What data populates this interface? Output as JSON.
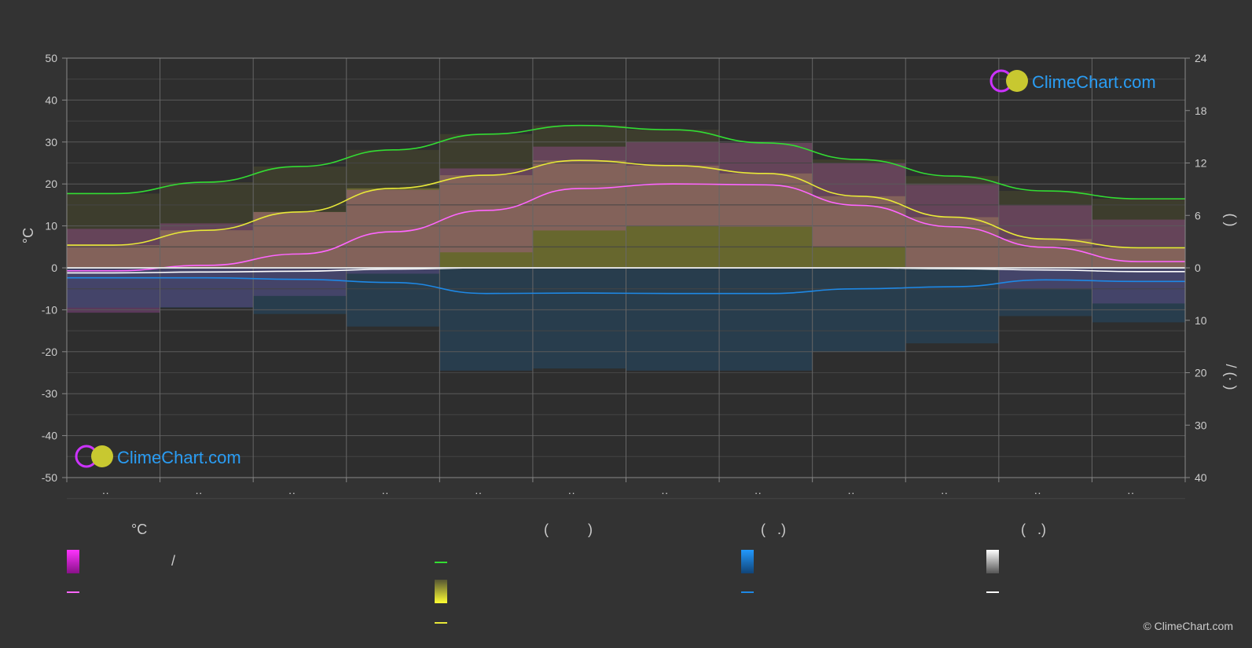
{
  "colors": {
    "daylight": "#33dd33",
    "sunshine": "#e8e838",
    "temp_mean": "#ff66ff",
    "min_temp": "#ffffff",
    "rain": "#1e88e5",
    "background": "#333333"
  },
  "left_axis_title": "°C",
  "right_axis_top_title": "(  )",
  "right_axis_bottom_title": "/   (· )",
  "month_labels": [
    "··",
    "··",
    "··",
    "··",
    "··",
    "··",
    "··",
    "··",
    "··",
    "··",
    "··",
    "··"
  ],
  "logo": {
    "text": "ClimeChart.com",
    "top_icon": "climechart-logo-icon",
    "bottom_icon": "climechart-logo-icon"
  },
  "legend": {
    "temp_head": "°C",
    "sun_head": "(          )",
    "rain_head": "(   .)",
    "snow_head": "(   .)",
    "temp_range_label": "/",
    "daylight_label": "",
    "sunshine_label": "",
    "rain_label": "",
    "snow_label": ""
  },
  "copyright": "© ClimeChart.com",
  "chart_data": {
    "type": "area",
    "title": "",
    "months": 12,
    "left_axis": {
      "label": "°C",
      "ylim": [
        -50,
        50
      ],
      "ticks": [
        50,
        40,
        30,
        20,
        10,
        0,
        -10,
        -20,
        -30,
        -40,
        -50
      ]
    },
    "right_axis_top": {
      "ylim": [
        0,
        24
      ],
      "ticks": [
        24,
        18,
        12,
        6,
        0
      ]
    },
    "right_axis_bottom": {
      "ylim": [
        0,
        40
      ],
      "ticks": [
        0,
        10,
        20,
        30,
        40
      ]
    },
    "grid": true,
    "series": [
      {
        "name": "daylight",
        "axis": "right_top",
        "values": [
          8.5,
          9.8,
          11.6,
          13.5,
          15.3,
          16.3,
          15.8,
          14.3,
          12.4,
          10.5,
          8.8,
          7.9
        ]
      },
      {
        "name": "sunshine",
        "axis": "right_top",
        "values": [
          2.6,
          4.3,
          6.4,
          9.1,
          10.6,
          12.3,
          11.7,
          10.8,
          8.2,
          5.8,
          3.3,
          2.3
        ]
      },
      {
        "name": "temp_mean",
        "axis": "left",
        "values": [
          -0.7,
          0.6,
          3.3,
          8.6,
          13.7,
          18.9,
          20.0,
          19.8,
          14.9,
          9.8,
          4.9,
          1.5
        ]
      },
      {
        "name": "min_temp",
        "axis": "left",
        "values": [
          -1.2,
          -1.0,
          -0.8,
          -0.3,
          0.0,
          0.0,
          0.0,
          0.0,
          0.0,
          -0.2,
          -0.5,
          -0.9
        ]
      },
      {
        "name": "rain",
        "axis": "right_bottom",
        "values": [
          1.9,
          1.9,
          2.2,
          2.8,
          4.9,
          4.8,
          4.9,
          4.9,
          4.0,
          3.6,
          2.3,
          2.6
        ]
      }
    ]
  }
}
